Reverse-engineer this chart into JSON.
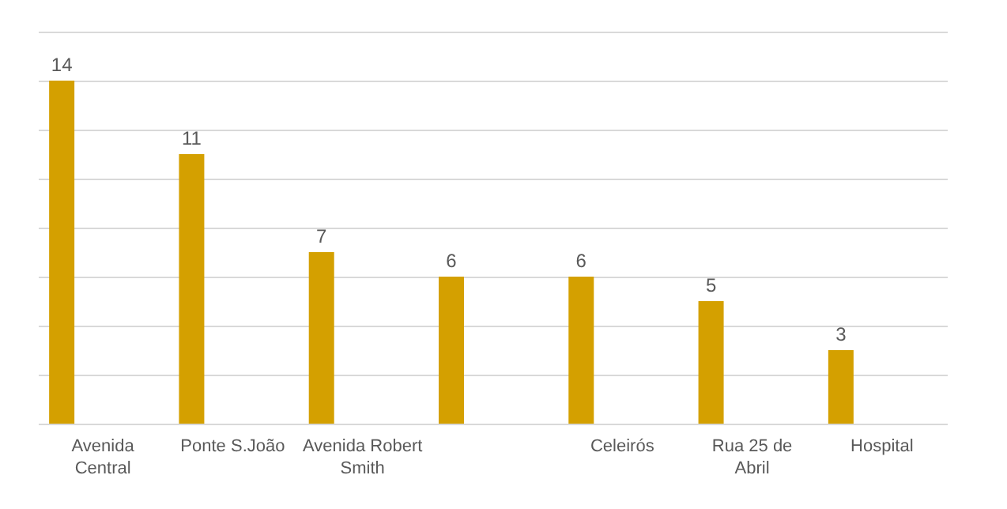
{
  "chart_data": {
    "type": "bar",
    "categories": [
      "Avenida Central",
      "Ponte S.João",
      "Avenida Robert Smith",
      null,
      "Celeirós",
      "Rua 25 de Abril",
      "Hospital"
    ],
    "values": [
      14,
      11,
      7,
      6,
      6,
      5,
      3
    ],
    "color": "#d4a000",
    "ylim": [
      0,
      16
    ],
    "grid": "y",
    "tick_labels": "x",
    "data_labels": true
  }
}
